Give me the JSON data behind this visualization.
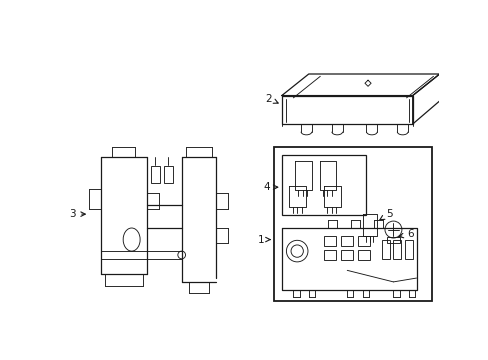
{
  "background_color": "#ffffff",
  "line_color": "#1a1a1a",
  "figure_width": 4.89,
  "figure_height": 3.6,
  "dpi": 100,
  "label_fontsize": 7.5
}
